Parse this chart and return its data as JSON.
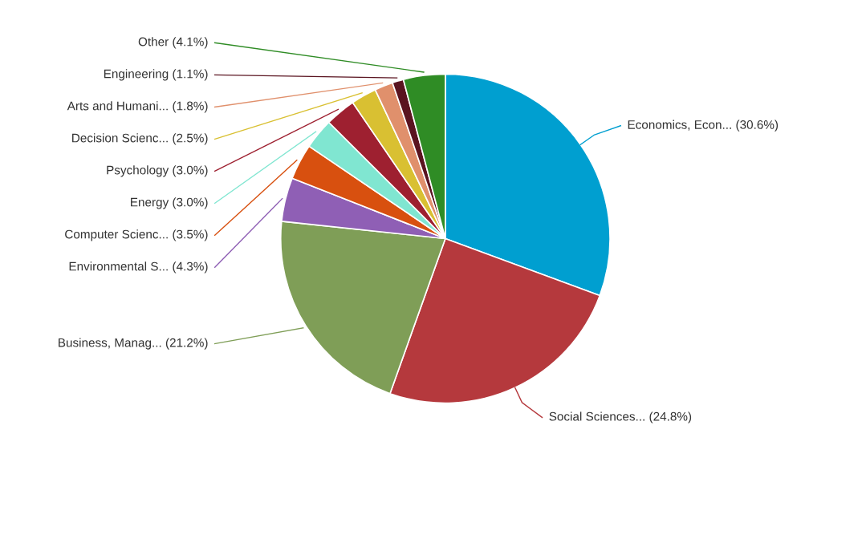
{
  "chart_data": {
    "type": "pie",
    "categories": [
      "Economics, Econ...",
      "Social Sciences...",
      "Business, Manag...",
      "Environmental S...",
      "Computer Scienc...",
      "Energy",
      "Psychology",
      "Decision Scienc...",
      "Arts and Humani...",
      "Engineering",
      "Other"
    ],
    "values": [
      30.6,
      24.8,
      21.2,
      4.3,
      3.5,
      3.0,
      3.0,
      2.5,
      1.8,
      1.1,
      4.1
    ],
    "value_labels": [
      "(30.6%)",
      "(24.8%)",
      "(21.2%)",
      "(4.3%)",
      "(3.5%)",
      "(3.0%)",
      "(3.0%)",
      "(2.5%)",
      "(1.8%)",
      "(1.1%)",
      "(4.1%)"
    ],
    "colors": [
      "#009fd0",
      "#b5393d",
      "#7f9e57",
      "#8f5fb5",
      "#d8500f",
      "#80e6d1",
      "#9e2030",
      "#d9c032",
      "#e0906c",
      "#5a1420",
      "#2f8c25"
    ]
  }
}
